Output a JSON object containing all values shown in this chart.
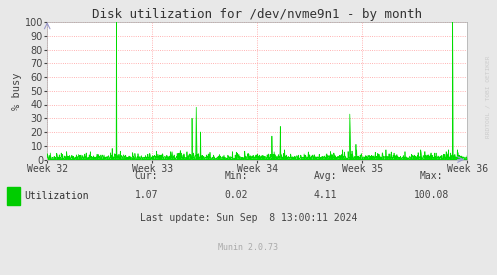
{
  "title": "Disk utilization for /dev/nvme9n1 - by month",
  "ylabel": "% busy",
  "ylim": [
    0,
    100
  ],
  "yticks": [
    0,
    10,
    20,
    30,
    40,
    50,
    60,
    70,
    80,
    90,
    100
  ],
  "xtick_labels": [
    "Week 32",
    "Week 33",
    "Week 34",
    "Week 35",
    "Week 36"
  ],
  "background_color": "#e8e8e8",
  "plot_bg_color": "#ffffff",
  "grid_color": "#ff9999",
  "grid_style": "dotted",
  "line_color": "#00dd00",
  "fill_color": "#00dd00",
  "legend_label": "Utilization",
  "legend_color": "#00cc00",
  "stats_cur": "1.07",
  "stats_min": "0.02",
  "stats_avg": "4.11",
  "stats_max": "100.08",
  "last_update": "Last update: Sun Sep  8 13:00:11 2024",
  "munin_version": "Munin 2.0.73",
  "watermark": "RRDTOOL / TOBI OETIKER",
  "title_fontsize": 9,
  "axis_label_fontsize": 7.5,
  "tick_fontsize": 7,
  "stats_fontsize": 7,
  "munin_fontsize": 6,
  "n_points": 1500
}
